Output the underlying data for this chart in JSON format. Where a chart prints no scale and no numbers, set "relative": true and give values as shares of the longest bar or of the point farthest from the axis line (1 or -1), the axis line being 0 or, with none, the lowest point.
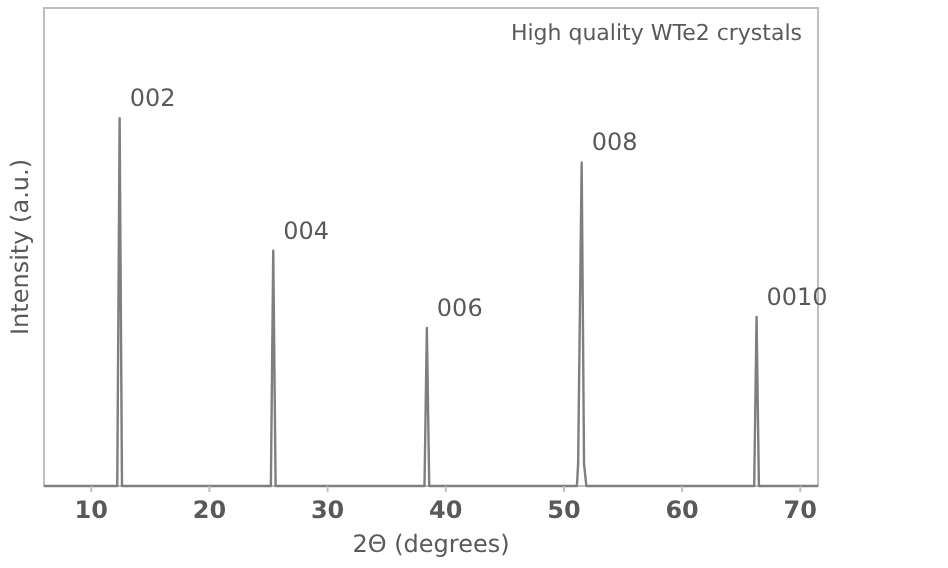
{
  "chart_data": {
    "type": "line",
    "title": "High quality WTe2 crystals",
    "xlabel": "2Θ (degrees)",
    "ylabel": "Intensity (a.u.)",
    "relative": true,
    "xlim": [
      6,
      71.5
    ],
    "xticks": [
      10,
      20,
      30,
      40,
      50,
      60,
      70
    ],
    "grid": false,
    "marker": "none",
    "line_style": "solid",
    "series": [
      {
        "color": "#7f7f7f",
        "x": [
          6,
          10,
          12.2,
          12.4,
          12.6,
          20,
          25.2,
          25.4,
          25.6,
          30,
          38.2,
          38.4,
          38.6,
          45,
          51.1,
          51.2,
          51.5,
          51.7,
          51.9,
          60,
          66.1,
          66.3,
          66.5,
          71.5
        ],
        "values": [
          0,
          0,
          0,
          1,
          0,
          0,
          0,
          0.64,
          0,
          0,
          0,
          0.43,
          0,
          0,
          0,
          0.06,
          0.88,
          0.06,
          0,
          0,
          0,
          0.46,
          0,
          0
        ]
      }
    ],
    "annotations": [
      {
        "text": "002",
        "x": 12.4,
        "y": 1
      },
      {
        "text": "004",
        "x": 25.4,
        "y": 0.64
      },
      {
        "text": "006",
        "x": 38.4,
        "y": 0.43
      },
      {
        "text": "008",
        "x": 51.5,
        "y": 0.88
      },
      {
        "text": "0010",
        "x": 66.3,
        "y": 0.46
      }
    ]
  }
}
